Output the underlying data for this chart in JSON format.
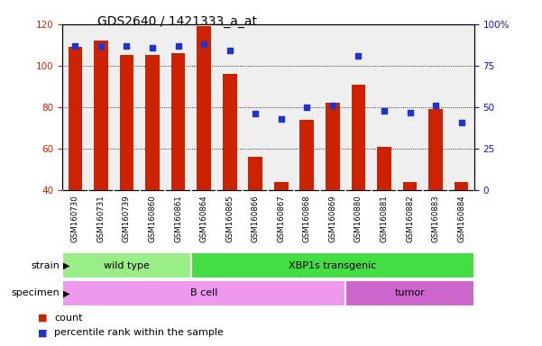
{
  "title": "GDS2640 / 1421333_a_at",
  "samples": [
    "GSM160730",
    "GSM160731",
    "GSM160739",
    "GSM160860",
    "GSM160861",
    "GSM160864",
    "GSM160865",
    "GSM160866",
    "GSM160867",
    "GSM160868",
    "GSM160869",
    "GSM160880",
    "GSM160881",
    "GSM160882",
    "GSM160883",
    "GSM160884"
  ],
  "counts": [
    109,
    112,
    105,
    105,
    106,
    119,
    96,
    56,
    44,
    74,
    82,
    91,
    61,
    44,
    79,
    44
  ],
  "percentile_ranks": [
    87,
    87,
    87,
    86,
    87,
    88,
    84,
    46,
    43,
    50,
    51,
    81,
    48,
    47,
    51,
    41
  ],
  "bar_color": "#cc2200",
  "dot_color": "#2233cc",
  "ylim_left": [
    40,
    120
  ],
  "ylim_right": [
    0,
    100
  ],
  "strain_groups": [
    {
      "label": "wild type",
      "start": 0,
      "end": 4,
      "color": "#99ee88"
    },
    {
      "label": "XBP1s transgenic",
      "start": 5,
      "end": 15,
      "color": "#44dd44"
    }
  ],
  "specimen_groups": [
    {
      "label": "B cell",
      "start": 0,
      "end": 10,
      "color": "#ee99ee"
    },
    {
      "label": "tumor",
      "start": 11,
      "end": 15,
      "color": "#cc66cc"
    }
  ],
  "left_axis_color": "#cc2200",
  "right_axis_color": "#1111cc",
  "tick_fontsize": 7.5,
  "title_fontsize": 10,
  "bar_width": 0.55
}
